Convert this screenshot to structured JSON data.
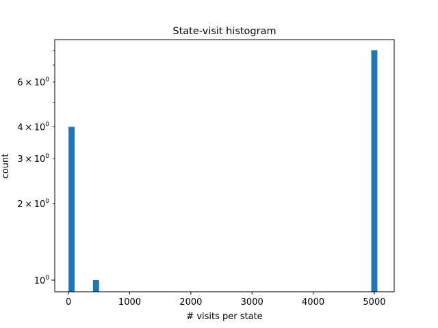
{
  "chart_data": {
    "type": "bar",
    "title": "State-visit histogram",
    "xlabel": "# visits per state",
    "ylabel": "count",
    "y_scale": "log",
    "xlim": [
      -225,
      5325
    ],
    "ylim": [
      0.9,
      8.8
    ],
    "bar_color": "#1f77b4",
    "grid": false,
    "legend": "none",
    "x_ticks": [
      {
        "value": 0,
        "label": "0"
      },
      {
        "value": 1000,
        "label": "1000"
      },
      {
        "value": 2000,
        "label": "2000"
      },
      {
        "value": 3000,
        "label": "3000"
      },
      {
        "value": 4000,
        "label": "4000"
      },
      {
        "value": 5000,
        "label": "5000"
      }
    ],
    "y_major_ticks": [
      {
        "value": 1,
        "base": "10",
        "exp": "0"
      }
    ],
    "y_minor_ticks": [
      {
        "value": 2,
        "coef": "2",
        "base": "10",
        "exp": "0"
      },
      {
        "value": 3,
        "coef": "3",
        "base": "10",
        "exp": "0"
      },
      {
        "value": 4,
        "coef": "4",
        "base": "10",
        "exp": "0"
      },
      {
        "value": 5,
        "coef": "",
        "base": "",
        "exp": ""
      },
      {
        "value": 6,
        "coef": "6",
        "base": "10",
        "exp": "0"
      },
      {
        "value": 7,
        "coef": "",
        "base": "",
        "exp": ""
      },
      {
        "value": 8,
        "coef": "",
        "base": "",
        "exp": ""
      }
    ],
    "bars": [
      {
        "x0": 0,
        "x1": 100,
        "count": 4
      },
      {
        "x0": 400,
        "x1": 500,
        "count": 1
      },
      {
        "x0": 4950,
        "x1": 5050,
        "count": 8
      }
    ]
  }
}
